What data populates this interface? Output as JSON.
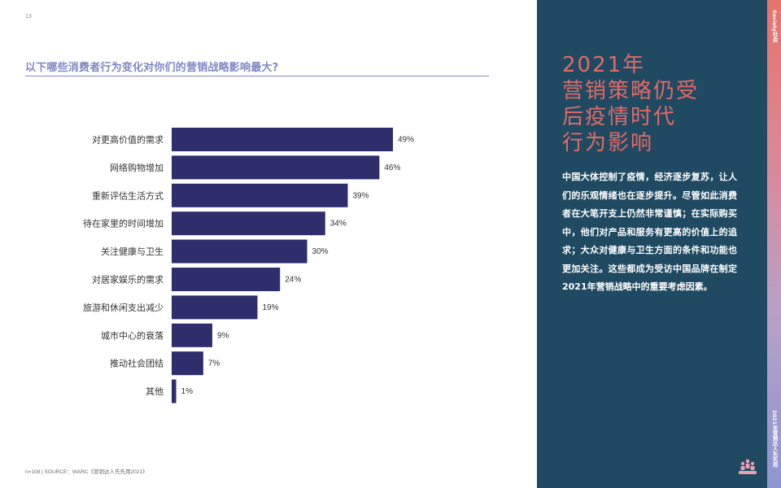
{
  "page": {
    "number": "13",
    "footnote": "n=108 | SOURCE：WARC《营销达人先先用2021》"
  },
  "question": "以下哪些消费者行为变化对你们的营销战略影响最大?",
  "chart_data": {
    "type": "bar",
    "orientation": "horizontal",
    "categories": [
      "对更高价值的需求",
      "网络购物增加",
      "重新评估生活方式",
      "待在家里的时间增加",
      "关注健康与卫生",
      "对居家娱乐的需求",
      "旅游和休闲支出减少",
      "城市中心的衰落",
      "推动社会团结",
      "其他"
    ],
    "values": [
      49,
      46,
      39,
      34,
      30,
      24,
      19,
      9,
      7,
      1
    ],
    "value_labels": [
      "49%",
      "46%",
      "39%",
      "34%",
      "30%",
      "24%",
      "19%",
      "9%",
      "7%",
      "1%"
    ],
    "title": "",
    "xlabel": "",
    "ylabel": "",
    "xlim": [
      0,
      49
    ],
    "grid": false,
    "legend": "none",
    "bar_color": "#2d2e6b"
  },
  "right_panel": {
    "headline": [
      "2021年",
      "营销策略仍受",
      "后疫情时代",
      "行为影响"
    ],
    "body": "中国大体控制了疫情，经济逐步复苏，让人们的乐观情绪也在逐步提升。尽管如此消费者在大笔开支上仍然非常谨慎；在实际购买中，他们对产品和服务有更高的价值上的追求；大众对健康与卫生方面的条件和功能也更加关注。这些都成为受访中国品牌在制定2021年营销战略中的重要考虑因素。",
    "logo_icon": "people-group-icon"
  },
  "side_strip": {
    "top_label": "Society社会",
    "bottom_label": "2021年营销达人先先用"
  },
  "colors": {
    "panel": "#1f4a62",
    "headline": "#e26a66",
    "question": "#7f87c2",
    "bars": "#2d2e6b"
  }
}
